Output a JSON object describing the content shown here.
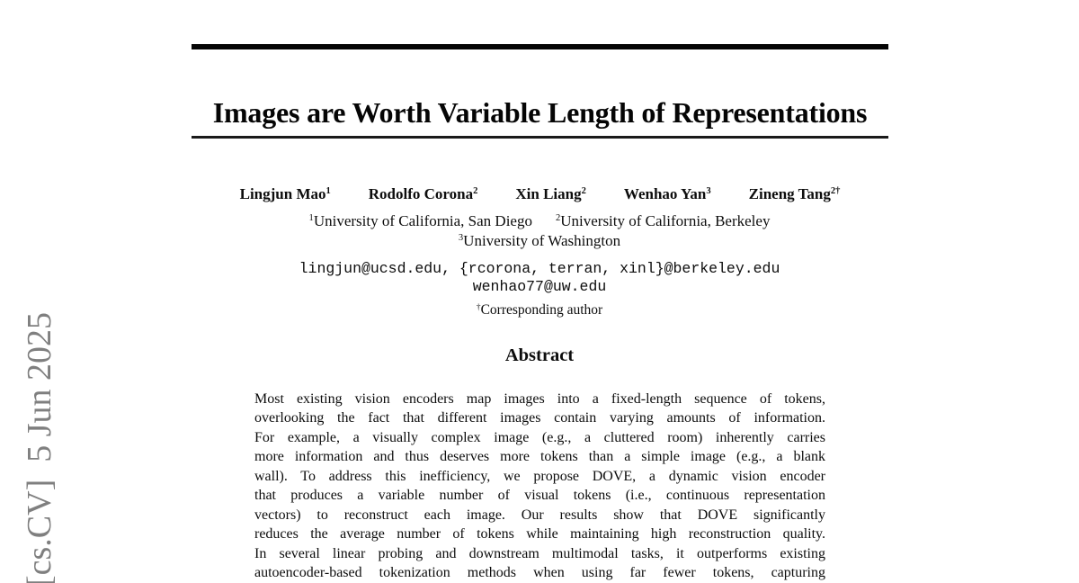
{
  "page": {
    "background_color": "#ffffff",
    "text_color": "#0d0d0d",
    "watermark_color": "#7f7f7f"
  },
  "watermark": {
    "text": "[cs.CV]  5 Jun 2025"
  },
  "title": "Images are Worth Variable Length of Representations",
  "authors": [
    {
      "name": "Lingjun Mao",
      "sup": "1"
    },
    {
      "name": "Rodolfo Corona",
      "sup": "2"
    },
    {
      "name": "Xin Liang",
      "sup": "2"
    },
    {
      "name": "Wenhao Yan",
      "sup": "3"
    },
    {
      "name": "Zineng Tang",
      "sup": "2†"
    }
  ],
  "affiliations": [
    {
      "sup": "1",
      "name": "University of California, San Diego"
    },
    {
      "sup": "2",
      "name": "University of California, Berkeley"
    },
    {
      "sup": "3",
      "name": "University of Washington"
    }
  ],
  "emails": {
    "line1": "lingjun@ucsd.edu, {rcorona, terran, xinl}@berkeley.edu",
    "line2": "wenhao77@uw.edu"
  },
  "corresponding": {
    "sup": "†",
    "text": "Corresponding author"
  },
  "abstract": {
    "heading": "Abstract",
    "lines": [
      "Most existing vision encoders map images into a fixed-length sequence of tokens,",
      "overlooking the fact that different images contain varying amounts of information.",
      "For example, a visually complex image (e.g., a cluttered room) inherently carries",
      "more information and thus deserves more tokens than a simple image (e.g., a blank",
      "wall). To address this inefficiency, we propose DOVE, a dynamic vision encoder",
      "that produces a variable number of visual tokens (i.e., continuous representation",
      "vectors) to reconstruct each image.  Our results show that DOVE significantly",
      "reduces the average number of tokens while maintaining high reconstruction quality.",
      "In several linear probing and downstream multimodal tasks, it outperforms existing",
      "autoencoder-based tokenization methods when using far fewer tokens, capturing"
    ]
  }
}
